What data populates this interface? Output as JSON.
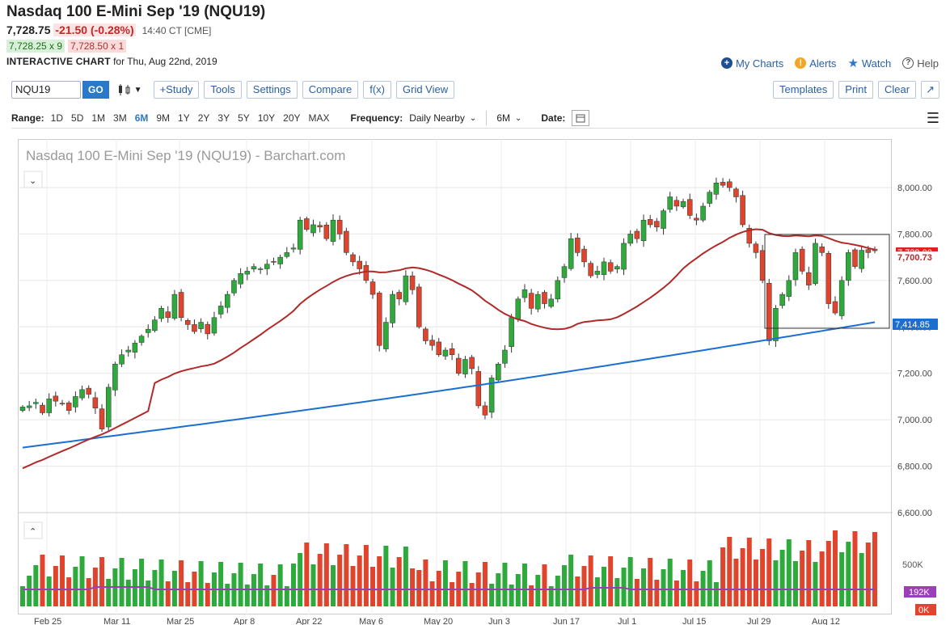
{
  "header": {
    "title": "Nasdaq 100 E-Mini Sep '19 (NQU19)",
    "last": "7,728.75",
    "change": "-21.50 (-0.28%)",
    "time": "14:40 CT [CME]",
    "bid": "7,728.25 x 9",
    "ask": "7,728.50 x 1",
    "chart_label": "INTERACTIVE CHART",
    "chart_date": "for Thu, Aug 22nd, 2019"
  },
  "links": {
    "my_charts": "My Charts",
    "alerts": "Alerts",
    "watch": "Watch",
    "help": "Help"
  },
  "toolbar": {
    "symbol": "NQU19",
    "go": "GO",
    "study": "+Study",
    "tools": "Tools",
    "settings": "Settings",
    "compare": "Compare",
    "fx": "f(x)",
    "grid_view": "Grid View",
    "templates": "Templates",
    "print": "Print",
    "clear": "Clear"
  },
  "range": {
    "label": "Range:",
    "options": [
      "1D",
      "5D",
      "1M",
      "3M",
      "6M",
      "9M",
      "1Y",
      "2Y",
      "3Y",
      "5Y",
      "10Y",
      "20Y",
      "MAX"
    ],
    "selected": "6M",
    "frequency_label": "Frequency:",
    "frequency_value": "Daily Nearby",
    "period_value": "6M",
    "date_label": "Date:"
  },
  "chart": {
    "watermark": "Nasdaq 100 E-Mini Sep '19 (NQU19) - Barchart.com",
    "price_labels": [
      "8,000.00",
      "7,800.00",
      "7,600.00",
      "7,400.00",
      "7,200.00",
      "7,000.00",
      "6,800.00",
      "6,600.00"
    ],
    "last_tag": "7,728.00",
    "ma50_tag": "7,700.73",
    "ma200_tag": "7,414.85",
    "vol_labels": [
      "500K"
    ],
    "vol_ma_tag": "192K",
    "vol_zero_tag": "0K",
    "x_labels": [
      "Feb 25",
      "Mar 11",
      "Mar 25",
      "Apr 8",
      "Apr 22",
      "May 6",
      "May 20",
      "Jun 3",
      "Jun 17",
      "Jul 1",
      "Jul 15",
      "Jul 29",
      "Aug 12"
    ],
    "colors": {
      "up": "#2eaa3c",
      "down": "#e0442c",
      "ma50": "#b02a2a",
      "ma200": "#1c6fd1",
      "volma": "#9b3fb8"
    }
  },
  "chart_data": {
    "type": "candlestick",
    "title": "Nasdaq 100 E-Mini Sep '19 (NQU19) - Barchart.com",
    "ylim": [
      6600,
      8100
    ],
    "closes": [
      7055,
      7060,
      7075,
      7030,
      7090,
      7080,
      7070,
      7040,
      7100,
      7130,
      7110,
      7050,
      6960,
      7140,
      7240,
      7280,
      7300,
      7330,
      7360,
      7390,
      7430,
      7480,
      7440,
      7540,
      7440,
      7410,
      7380,
      7420,
      7370,
      7440,
      7490,
      7540,
      7600,
      7630,
      7640,
      7660,
      7650,
      7670,
      7680,
      7700,
      7720,
      7740,
      7860,
      7820,
      7840,
      7830,
      7780,
      7860,
      7800,
      7720,
      7680,
      7650,
      7600,
      7540,
      7320,
      7420,
      7540,
      7520,
      7620,
      7560,
      7400,
      7340,
      7320,
      7280,
      7300,
      7280,
      7200,
      7260,
      7220,
      7060,
      7020,
      7180,
      7240,
      7300,
      7440,
      7520,
      7560,
      7480,
      7540,
      7500,
      7520,
      7600,
      7660,
      7780,
      7720,
      7680,
      7620,
      7640,
      7680,
      7640,
      7660,
      7760,
      7800,
      7780,
      7860,
      7840,
      7830,
      7900,
      7960,
      7920,
      7940,
      7880,
      7860,
      7920,
      7980,
      8020,
      8010,
      8000,
      7960,
      7840,
      7760,
      7720,
      7600,
      7340,
      7480,
      7540,
      7600,
      7720,
      7640,
      7580,
      7760,
      7720,
      7500,
      7460,
      7600,
      7720,
      7660,
      7730,
      7720,
      7728
    ]
  }
}
